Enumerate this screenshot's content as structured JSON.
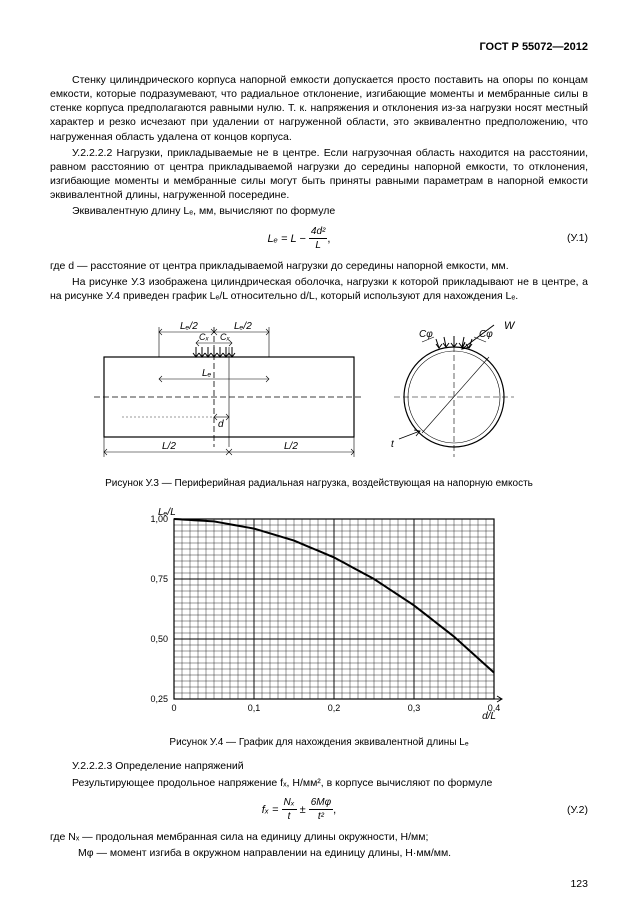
{
  "header": "ГОСТ Р 55072—2012",
  "para1": "Стенку цилиндрического корпуса напорной емкости допускается просто поставить на опоры по концам емкости, которые подразумевают, что радиальное отклонение, изгибающие моменты и мембранные силы в стенке корпуса предполагаются равными нулю. Т. к. напряжения и отклонения из-за нагрузки носят местный характер и резко исчезают при удалении от нагруженной области, это эквивалентно предположению, что нагруженная область удалена от концов корпуса.",
  "para2": "У.2.2.2.2 Нагрузки, прикладываемые не в центре. Если нагрузочная область находится на расстоянии, равном расстоянию от центра прикладываемой нагрузки до середины напорной емкости, то отклонения, изгибающие моменты и мембранные силы могут быть приняты равными параметрам в напорной емкости эквивалентной длины, нагруженной посередине.",
  "para3": "Эквивалентную длину Lₑ, мм, вычисляют по формуле",
  "formula1_lhs": "Lₑ = L −",
  "formula1_frac_num": "4d²",
  "formula1_frac_den": "L",
  "formula1_punct": ",",
  "formula1_num": "(У.1)",
  "where1": "где  d — расстояние от центра прикладываемой нагрузки до середины напорной емкости, мм.",
  "para4": "На рисунке У.3 изображена цилиндрическая оболочка, нагрузки к которой прикладывают не в центре, а на рисунке У.4 приведен график Lₑ/L относительно d/L, который используют для нахождения Lₑ.",
  "fig3": {
    "labels": {
      "Le2_left": "Lₑ/2",
      "Le2_right": "Lₑ/2",
      "Cx": "Cₓ",
      "Le": "Lₑ",
      "d": "d",
      "L2": "L/2",
      "W": "W",
      "Cphi": "Cφ",
      "t": "t"
    },
    "caption": "Рисунок У.3 — Периферийная радиальная нагрузка, воздействующая на напорную емкость"
  },
  "fig4": {
    "ylabel": "Lₑ/L",
    "xlabel": "d/L",
    "xlim": [
      0,
      0.4
    ],
    "ylim": [
      0.25,
      1.0
    ],
    "xticks": [
      0,
      0.1,
      0.2,
      0.3,
      0.4
    ],
    "yticks": [
      0.25,
      0.5,
      0.75,
      1.0
    ],
    "xtick_labels": [
      "0",
      "0,1",
      "0,2",
      "0,3",
      "0,4"
    ],
    "ytick_labels": [
      "0,25",
      "0,50",
      "0,75",
      "1,00"
    ],
    "grid_color": "#000000",
    "grid_width": 0.4,
    "line_color": "#000000",
    "line_width": 2,
    "background_color": "#ffffff",
    "curve": [
      [
        0.0,
        1.0
      ],
      [
        0.05,
        0.99
      ],
      [
        0.1,
        0.96
      ],
      [
        0.15,
        0.91
      ],
      [
        0.2,
        0.84
      ],
      [
        0.25,
        0.75
      ],
      [
        0.3,
        0.64
      ],
      [
        0.35,
        0.51
      ],
      [
        0.4,
        0.36
      ]
    ],
    "caption": "Рисунок У.4 — График для нахождения эквивалентной длины Lₑ"
  },
  "para5": "У.2.2.2.3 Определение напряжений",
  "para6": "Результирующее продольное напряжение fₓ, Н/мм², в корпусе вычисляют по формуле",
  "formula2_a": "fₓ =",
  "formula2_frac1_num": "Nₓ",
  "formula2_frac1_den": "t",
  "formula2_pm": "±",
  "formula2_frac2_num": "6Mφ",
  "formula2_frac2_den": "t²",
  "formula2_punct": ",",
  "formula2_num": "(У.2)",
  "where2a": "где  Nₓ — продольная мембранная сила на единицу длины окружности, Н/мм;",
  "where2b": "       Mφ — момент изгиба в окружном направлении на единицу длины, Н·мм/мм.",
  "pagenum": "123"
}
